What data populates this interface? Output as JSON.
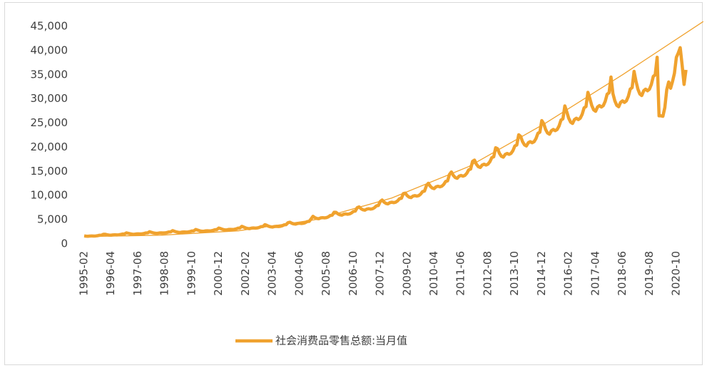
{
  "chart_data": {
    "type": "line",
    "categories": [
      "1995-02",
      null,
      null,
      null,
      null,
      null,
      null,
      null,
      null,
      null,
      null,
      null,
      null,
      null,
      "1996-04",
      null,
      null,
      null,
      null,
      null,
      null,
      null,
      null,
      null,
      null,
      null,
      null,
      null,
      "1997-06",
      null,
      null,
      null,
      null,
      null,
      null,
      null,
      null,
      null,
      null,
      null,
      null,
      null,
      "1998-08",
      null,
      null,
      null,
      null,
      null,
      null,
      null,
      null,
      null,
      null,
      null,
      null,
      null,
      "1999-10",
      null,
      null,
      null,
      null,
      null,
      null,
      null,
      null,
      null,
      null,
      null,
      null,
      null,
      "2000-12",
      null,
      null,
      null,
      null,
      null,
      null,
      null,
      null,
      null,
      null,
      null,
      null,
      null,
      "2002-02",
      null,
      null,
      null,
      null,
      null,
      null,
      null,
      null,
      null,
      null,
      null,
      null,
      null,
      "2003-04",
      null,
      null,
      null,
      null,
      null,
      null,
      null,
      null,
      null,
      null,
      null,
      null,
      null,
      "2004-06",
      null,
      null,
      null,
      null,
      null,
      null,
      null,
      null,
      null,
      null,
      null,
      null,
      null,
      "2005-08",
      null,
      null,
      null,
      null,
      null,
      null,
      null,
      null,
      null,
      null,
      null,
      null,
      null,
      "2006-10",
      null,
      null,
      null,
      null,
      null,
      null,
      null,
      null,
      null,
      null,
      null,
      null,
      null,
      "2007-12",
      null,
      null,
      null,
      null,
      null,
      null,
      null,
      null,
      null,
      null,
      null,
      null,
      null,
      "2009-02",
      null,
      null,
      null,
      null,
      null,
      null,
      null,
      null,
      null,
      null,
      null,
      null,
      null,
      "2010-04",
      null,
      null,
      null,
      null,
      null,
      null,
      null,
      null,
      null,
      null,
      null,
      null,
      null,
      "2011-06",
      null,
      null,
      null,
      null,
      null,
      null,
      null,
      null,
      null,
      null,
      null,
      null,
      null,
      "2012-08",
      null,
      null,
      null,
      null,
      null,
      null,
      null,
      null,
      null,
      null,
      null,
      null,
      null,
      "2013-10",
      null,
      null,
      null,
      null,
      null,
      null,
      null,
      null,
      null,
      null,
      null,
      null,
      null,
      "2014-12",
      null,
      null,
      null,
      null,
      null,
      null,
      null,
      null,
      null,
      null,
      null,
      null,
      null,
      "2016-02",
      null,
      null,
      null,
      null,
      null,
      null,
      null,
      null,
      null,
      null,
      null,
      null,
      null,
      "2017-04",
      null,
      null,
      null,
      null,
      null,
      null,
      null,
      null,
      null,
      null,
      null,
      null,
      null,
      "2018-06",
      null,
      null,
      null,
      null,
      null,
      null,
      null,
      null,
      null,
      null,
      null,
      null,
      null,
      "2019-08",
      null,
      null,
      null,
      null,
      null,
      null,
      null,
      null,
      null,
      null,
      null,
      null,
      null,
      "2020-10",
      null,
      null,
      null,
      null,
      null
    ],
    "series": [
      {
        "name": "社会消费品零售总额:当月值",
        "color": "#f0a22e",
        "values": [
          1650,
          1600,
          1580,
          1630,
          1650,
          1630,
          1650,
          1700,
          1790,
          1800,
          1990,
          1990,
          1890,
          1830,
          1810,
          1870,
          1890,
          1870,
          1890,
          1950,
          2050,
          2070,
          2280,
          2190,
          2090,
          2020,
          2000,
          2060,
          2090,
          2060,
          2090,
          2150,
          2260,
          2280,
          2520,
          2400,
          2280,
          2210,
          2190,
          2260,
          2280,
          2260,
          2280,
          2350,
          2470,
          2490,
          2750,
          2600,
          2470,
          2400,
          2370,
          2450,
          2470,
          2450,
          2470,
          2550,
          2680,
          2700,
          2980,
          2860,
          2720,
          2630,
          2600,
          2690,
          2720,
          2690,
          2720,
          2800,
          2940,
          2970,
          3280,
          3160,
          3010,
          2910,
          2880,
          2980,
          3010,
          2980,
          3010,
          3100,
          3260,
          3290,
          3630,
          3470,
          3300,
          3200,
          3160,
          3260,
          3300,
          3260,
          3300,
          3400,
          3570,
          3600,
          3980,
          3830,
          3640,
          3530,
          3490,
          3600,
          3640,
          3600,
          3640,
          3750,
          3940,
          3980,
          4390,
          4490,
          4270,
          4140,
          4090,
          4220,
          4270,
          4220,
          4270,
          4400,
          4620,
          4660,
          5150,
          5710,
          5430,
          5260,
          5210,
          5380,
          5430,
          5380,
          5430,
          5600,
          5880,
          5940,
          6550,
          6530,
          6210,
          6020,
          5950,
          6140,
          6210,
          6140,
          6210,
          6400,
          6720,
          6780,
          7490,
          7650,
          7280,
          7050,
          6980,
          7200,
          7280,
          7200,
          7280,
          7500,
          7880,
          7950,
          8780,
          9080,
          8630,
          8370,
          8280,
          8540,
          8630,
          8540,
          8630,
          8900,
          9350,
          9430,
          10410,
          10510,
          9990,
          9680,
          9580,
          9890,
          9990,
          9890,
          9990,
          10300,
          10820,
          10920,
          12050,
          12550,
          11930,
          11560,
          11440,
          11810,
          11930,
          11810,
          11930,
          12300,
          12920,
          13040,
          14390,
          14890,
          14160,
          13720,
          13580,
          14020,
          14160,
          14020,
          14160,
          14600,
          15330,
          15480,
          17080,
          17340,
          16490,
          15980,
          15810,
          16320,
          16490,
          16320,
          16490,
          17000,
          17850,
          18020,
          19890,
          19690,
          18720,
          18140,
          17950,
          18530,
          18720,
          18530,
          18720,
          19300,
          20270,
          20460,
          22580,
          22240,
          21150,
          20490,
          20270,
          20930,
          21150,
          20930,
          21150,
          21800,
          22890,
          23110,
          25510,
          24890,
          23670,
          22940,
          22690,
          23420,
          23670,
          23420,
          23670,
          24400,
          25620,
          25860,
          28550,
          27340,
          26000,
          25190,
          24920,
          25730,
          26000,
          25730,
          26000,
          26800,
          28140,
          28410,
          31360,
          30090,
          28620,
          27730,
          27440,
          28320,
          28620,
          28320,
          28620,
          29500,
          30980,
          31270,
          34520,
          31110,
          29590,
          28670,
          28370,
          29280,
          29590,
          29280,
          29590,
          30500,
          32030,
          32330,
          35690,
          33660,
          32010,
          31020,
          30690,
          31680,
          32010,
          31680,
          32010,
          33000,
          34650,
          34980,
          38610,
          26500,
          26500,
          26400,
          28200,
          31900,
          33500,
          32200,
          33600,
          35300,
          38600,
          39500,
          40600,
          37000,
          33000,
          36000
        ]
      }
    ],
    "trendline": {
      "color": "#f0a22e",
      "x": [
        0,
        40,
        80,
        120,
        160,
        200,
        240,
        280,
        322
      ],
      "values": [
        1500,
        1800,
        2700,
        5000,
        9500,
        16000,
        25000,
        35000,
        46000
      ]
    },
    "ylim": [
      0,
      45000
    ],
    "yticks": [
      0,
      {
        "value": 5000,
        "label": "5,000"
      },
      {
        "value": 10000,
        "label": "10,000"
      },
      {
        "value": 15000,
        "label": "15,000"
      },
      {
        "value": 20000,
        "label": "20,000"
      },
      {
        "value": 25000,
        "label": "25,000"
      },
      {
        "value": 30000,
        "label": "30,000"
      },
      {
        "value": 35000,
        "label": "35,000"
      },
      {
        "value": 40000,
        "label": "40,000"
      },
      {
        "value": 45000,
        "label": "45,000"
      }
    ],
    "grid": false,
    "legend": "bottom"
  }
}
